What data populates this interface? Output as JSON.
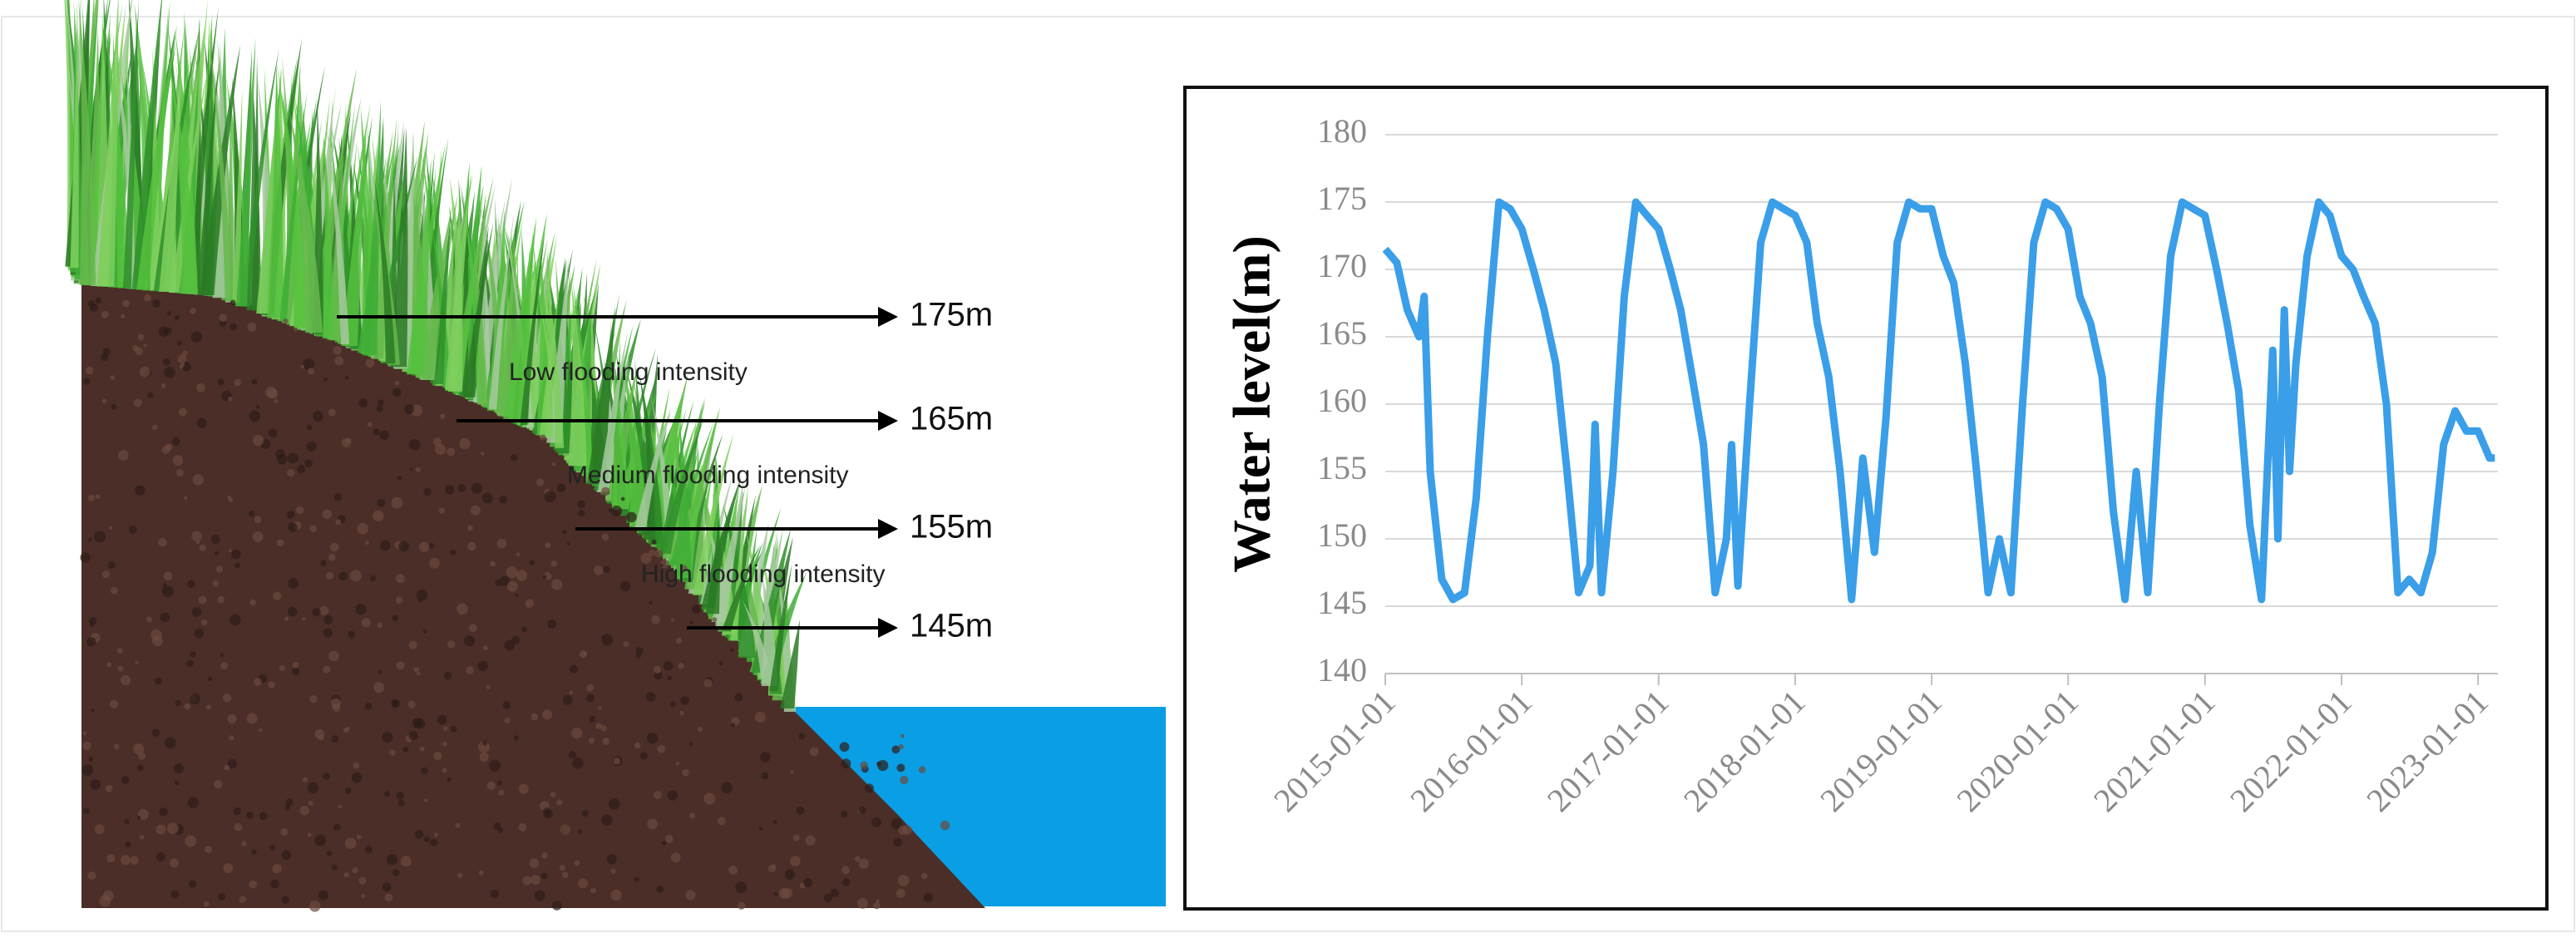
{
  "illustration": {
    "levels": [
      "175m",
      "165m",
      "155m",
      "145m"
    ],
    "zones": [
      "Low flooding intensity",
      "Medium flooding intensity",
      "High flooding intensity"
    ]
  },
  "chart_data": {
    "type": "line",
    "y_label": "Water level(m)",
    "color": "#3a9ee8",
    "x": [
      "2015-01-01",
      "2015-02-01",
      "2015-03-01",
      "2015-04-01",
      "2015-04-15",
      "2015-05-01",
      "2015-06-01",
      "2015-07-01",
      "2015-08-01",
      "2015-09-01",
      "2015-10-01",
      "2015-11-01",
      "2015-12-01",
      "2016-01-01",
      "2016-02-01",
      "2016-03-01",
      "2016-04-01",
      "2016-05-01",
      "2016-06-01",
      "2016-07-01",
      "2016-07-15",
      "2016-08-01",
      "2016-09-01",
      "2016-10-01",
      "2016-11-01",
      "2016-12-01",
      "2017-01-01",
      "2017-02-01",
      "2017-03-01",
      "2017-04-01",
      "2017-05-01",
      "2017-06-01",
      "2017-07-01",
      "2017-07-15",
      "2017-08-01",
      "2017-09-01",
      "2017-10-01",
      "2017-11-01",
      "2017-12-01",
      "2018-01-01",
      "2018-02-01",
      "2018-03-01",
      "2018-04-01",
      "2018-05-01",
      "2018-06-01",
      "2018-07-01",
      "2018-08-01",
      "2018-09-01",
      "2018-10-01",
      "2018-11-01",
      "2018-12-01",
      "2019-01-01",
      "2019-02-01",
      "2019-03-01",
      "2019-04-01",
      "2019-05-01",
      "2019-06-01",
      "2019-07-01",
      "2019-08-01",
      "2019-09-01",
      "2019-10-01",
      "2019-11-01",
      "2019-12-01",
      "2020-01-01",
      "2020-02-01",
      "2020-03-01",
      "2020-04-01",
      "2020-05-01",
      "2020-06-01",
      "2020-07-01",
      "2020-08-01",
      "2020-09-01",
      "2020-10-01",
      "2020-11-01",
      "2020-12-01",
      "2021-01-01",
      "2021-02-01",
      "2021-03-01",
      "2021-04-01",
      "2021-05-01",
      "2021-06-01",
      "2021-07-01",
      "2021-07-15",
      "2021-08-01",
      "2021-08-15",
      "2021-09-01",
      "2021-10-01",
      "2021-11-01",
      "2021-12-01",
      "2022-01-01",
      "2022-02-01",
      "2022-03-01",
      "2022-04-01",
      "2022-05-01",
      "2022-06-01",
      "2022-07-01",
      "2022-08-01",
      "2022-09-01",
      "2022-10-01",
      "2022-11-01",
      "2022-12-01",
      "2023-01-01",
      "2023-02-01",
      "2023-02-15"
    ],
    "values": [
      171.5,
      170.5,
      167,
      165,
      168,
      155,
      147,
      145.5,
      146,
      153,
      165,
      175,
      174.5,
      173,
      170,
      167,
      163,
      155,
      146,
      148,
      158.5,
      146,
      155,
      168,
      175,
      174,
      173,
      170,
      167,
      162,
      157,
      146,
      150,
      157,
      146.5,
      160,
      172,
      175,
      174.5,
      174,
      172,
      166,
      162,
      155,
      145.5,
      156,
      149,
      159,
      172,
      175,
      174.5,
      174.5,
      171,
      169,
      163,
      155,
      146,
      150,
      146,
      160,
      172,
      175,
      174.5,
      173,
      168,
      166,
      162,
      152,
      145.5,
      155,
      146,
      160,
      171,
      175,
      174.5,
      174,
      170,
      166,
      161,
      151,
      145.5,
      164,
      150,
      167,
      155,
      163,
      171,
      175,
      174,
      171,
      170,
      168,
      166,
      160,
      146,
      147,
      146,
      149,
      157,
      159.5,
      158,
      158,
      156,
      156
    ],
    "xlim": [
      "2015-01-01",
      "2023-02-23"
    ],
    "xticks": [
      "2015-01-01",
      "2016-01-01",
      "2017-01-01",
      "2018-01-01",
      "2019-01-01",
      "2020-01-01",
      "2021-01-01",
      "2022-01-01",
      "2023-01-01"
    ],
    "ylim": [
      140,
      180
    ],
    "yticks": [
      140,
      145,
      150,
      155,
      160,
      165,
      170,
      175,
      180
    ],
    "grid": true
  }
}
